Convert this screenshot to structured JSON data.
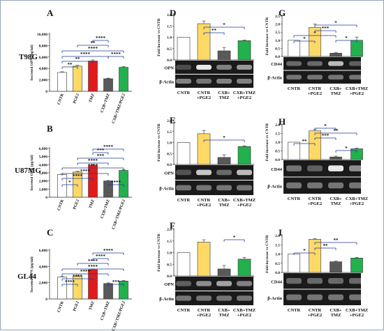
{
  "cell_lines": [
    "T98G",
    "U87MG",
    "GL44"
  ],
  "colors": {
    "CNTR": "#ffffff",
    "PGE2": "#ffd966",
    "TMZ": "#e01b1b",
    "CXB+TMZ": "#595959",
    "CXB+TMZ/PGE2": "#22b14c",
    "significance": "#1f3a93"
  },
  "elisa_group_labels": [
    "CNTR",
    "PGE2",
    "TMZ",
    "CXB+TMZ",
    "CXB+TMZ/PGE2"
  ],
  "wb_group_labels": [
    "CNTR",
    "CNTR +PGE2",
    "CXB+ TMZ",
    "CXB+TMZ +PGE2"
  ],
  "chart_data": [
    {
      "panel": "A",
      "cell_line": "T98G",
      "type": "bar",
      "ylabel": "Secreted OPN (pg/ml)",
      "categories": [
        "CNTR",
        "PGE2",
        "TMZ",
        "CXB+TMZ",
        "CXB+TMZ/PGE2"
      ],
      "values": [
        3300,
        4400,
        5300,
        2200,
        4200
      ],
      "errors": [
        120,
        150,
        180,
        100,
        140
      ],
      "ylim": [
        0,
        10000
      ],
      "yticks": [
        "0",
        "2,000",
        "4,000",
        "6,000",
        "8,000",
        "10,000"
      ],
      "significance": [
        "**",
        "**",
        "****",
        "****",
        "**",
        "****",
        "****"
      ]
    },
    {
      "panel": "B",
      "cell_line": "U87MG",
      "type": "bar",
      "ylabel": "Secreted OPN (pg/ml)",
      "categories": [
        "CNTR",
        "PGE2",
        "TMZ",
        "CXB+TMZ",
        "CXB+TMZ/PGE2"
      ],
      "values": [
        2800,
        3100,
        3900,
        2000,
        3300
      ],
      "errors": [
        100,
        80,
        120,
        60,
        90
      ],
      "ylim": [
        0,
        6000
      ],
      "yticks": [
        "0",
        "1,000",
        "2,000",
        "3,000",
        "4,000",
        "5,000",
        "6,000"
      ],
      "significance": [
        "*",
        "****",
        "****",
        "****",
        "****",
        "***",
        "***",
        "****",
        "****"
      ]
    },
    {
      "panel": "C",
      "cell_line": "GL44",
      "type": "bar",
      "ylabel": "Secreted OPN (pg/ml)",
      "categories": [
        "CNTR",
        "PGE2",
        "TMZ",
        "CXB+TMZ",
        "CXB+TMZ/PGE2"
      ],
      "values": [
        2700,
        2800,
        3600,
        1900,
        2200
      ],
      "errors": [
        60,
        60,
        80,
        80,
        70
      ],
      "ylim": [
        0,
        6000
      ],
      "yticks": [
        "0",
        "2,000",
        "4,000",
        "6,000"
      ],
      "significance": [
        "****",
        "****",
        "****",
        "****",
        "****",
        "****",
        "****",
        "***"
      ]
    },
    {
      "panel": "D",
      "cell_line": "T98G",
      "type": "bar",
      "ylabel": "Fold increase vs CNTR",
      "blot": "OPN",
      "categories": [
        "CNTR",
        "CNTR +PGE2",
        "CXB+ TMZ",
        "CXB+TMZ +PGE2"
      ],
      "values": [
        1.0,
        1.6,
        0.4,
        0.85
      ],
      "errors": [
        0,
        0.12,
        0.15,
        0.03
      ],
      "ylim": [
        0,
        2.0
      ],
      "yticks": [
        "0.0",
        "0.5",
        "1.0",
        "1.5",
        "2.0"
      ],
      "significance": [
        "**",
        "*"
      ]
    },
    {
      "panel": "E",
      "cell_line": "U87MG",
      "type": "bar",
      "ylabel": "Fold increase vs CNTR",
      "blot": "OPN",
      "categories": [
        "CNTR",
        "CNTR +PGE2",
        "CXB+ TMZ",
        "CXB+TMZ +PGE2"
      ],
      "values": [
        1.0,
        1.4,
        0.32,
        0.82
      ],
      "errors": [
        0,
        0.15,
        0.12,
        0.03
      ],
      "ylim": [
        0,
        2.0
      ],
      "yticks": [
        "0.0",
        "0.5",
        "1.0",
        "1.5",
        "2.0"
      ],
      "significance": [
        "*"
      ]
    },
    {
      "panel": "F",
      "cell_line": "GL44",
      "type": "bar",
      "ylabel": "Fold increase vs CNTR",
      "blot": "OPN",
      "categories": [
        "CNTR",
        "CNTR +PGE2",
        "CXB+ TMZ",
        "CXB+TMZ +PGE2"
      ],
      "values": [
        1.0,
        1.45,
        0.3,
        0.72
      ],
      "errors": [
        0,
        0.1,
        0.15,
        0.08
      ],
      "ylim": [
        0,
        2.0
      ],
      "yticks": [
        "0.0",
        "0.5",
        "1.0",
        "1.5",
        "2.0"
      ],
      "significance": [
        "*"
      ]
    },
    {
      "panel": "G",
      "cell_line": "T98G",
      "type": "bar",
      "ylabel": "Fold increase vs CNTR",
      "blot": "CD44",
      "categories": [
        "CNTR",
        "CNTR +PGE2",
        "CXB+ TMZ",
        "CXB+TMZ +PGE2"
      ],
      "values": [
        1.0,
        1.8,
        0.2,
        1.0
      ],
      "errors": [
        0,
        0.2,
        0.05,
        0.2
      ],
      "ylim": [
        0,
        2.5
      ],
      "yticks": [
        "0.0",
        "0.5",
        "1.0",
        "1.5",
        "2.0",
        "2.5"
      ],
      "significance": [
        "*",
        "*",
        "***",
        "*",
        "*"
      ]
    },
    {
      "panel": "H",
      "cell_line": "U87MG",
      "type": "bar",
      "ylabel": "Fold increase vs CNTR",
      "blot": "CD44",
      "categories": [
        "CNTR",
        "CNTR +PGE2",
        "CXB+ TMZ",
        "CXB+TMZ +PGE2"
      ],
      "values": [
        1.0,
        1.65,
        0.15,
        0.62
      ],
      "errors": [
        0,
        0.08,
        0.05,
        0.04
      ],
      "ylim": [
        0,
        2.0
      ],
      "yticks": [
        "0.0",
        "0.5",
        "1.0",
        "1.5",
        "2.0"
      ],
      "significance": [
        "**",
        "***",
        "*",
        "**",
        "*"
      ]
    },
    {
      "panel": "I",
      "cell_line": "GL44",
      "type": "bar",
      "ylabel": "Fold increase vs CNTR",
      "blot": "CD44",
      "categories": [
        "CNTR",
        "CNTR +PGE2",
        "CXB+ TMZ",
        "CXB+TMZ +PGE2"
      ],
      "values": [
        1.0,
        1.8,
        0.58,
        0.78
      ],
      "errors": [
        0,
        0.04,
        0.04,
        0.04
      ],
      "ylim": [
        0,
        2.0
      ],
      "yticks": [
        "0.0",
        "0.5",
        "1.0",
        "1.5",
        "2.0"
      ],
      "significance": [
        "*",
        "**",
        "**"
      ]
    }
  ]
}
